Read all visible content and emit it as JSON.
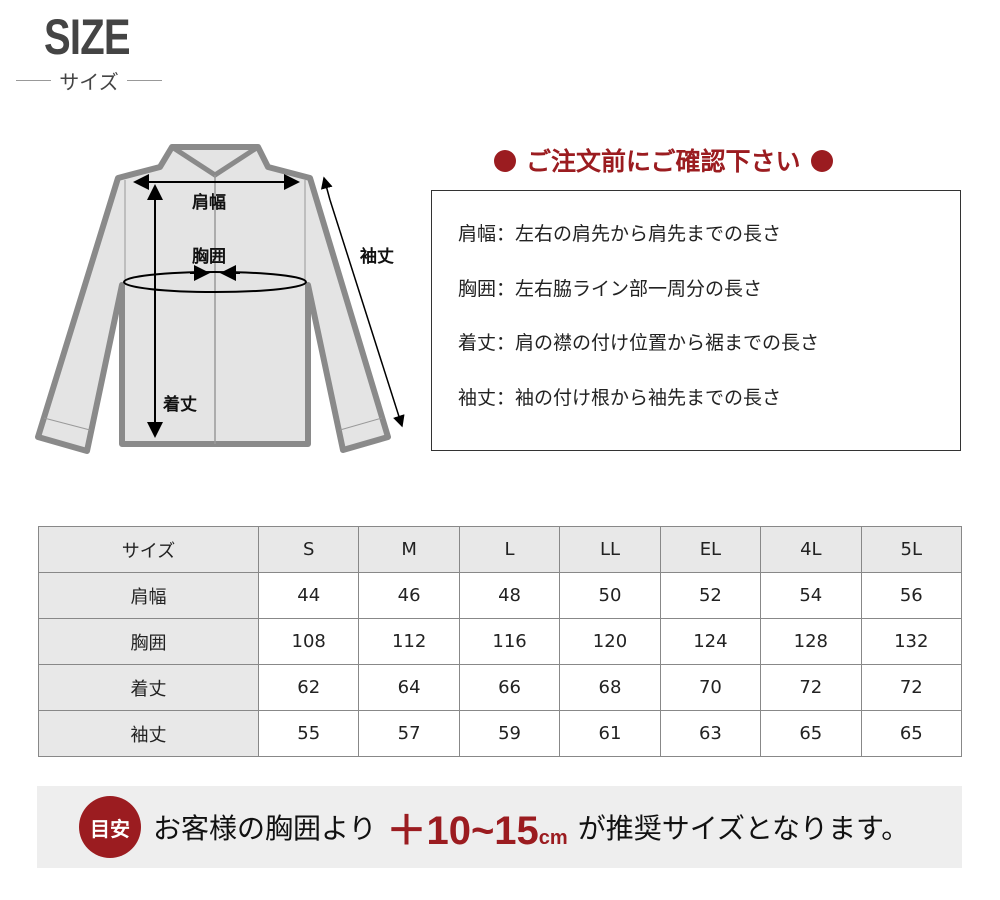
{
  "header": {
    "title": "SIZE",
    "subtitle": "サイズ"
  },
  "diagram": {
    "labels": {
      "shoulder": "肩幅",
      "chest": "胸囲",
      "length": "着丈",
      "sleeve": "袖丈"
    }
  },
  "notice": {
    "heading": "ご注文前にご確認下さい",
    "lines": [
      "肩幅：左右の肩先から肩先までの長さ",
      "胸囲：左右脇ライン部一周分の長さ",
      "着丈：肩の襟の付け位置から裾までの長さ",
      "袖丈：袖の付け根から袖先までの長さ"
    ]
  },
  "size_table": {
    "headers": [
      "サイズ",
      "S",
      "M",
      "L",
      "LL",
      "EL",
      "4L",
      "5L"
    ],
    "rows": [
      [
        "肩幅",
        "44",
        "46",
        "48",
        "50",
        "52",
        "54",
        "56"
      ],
      [
        "胸囲",
        "108",
        "112",
        "116",
        "120",
        "124",
        "128",
        "132"
      ],
      [
        "着丈",
        "62",
        "64",
        "66",
        "68",
        "70",
        "72",
        "72"
      ],
      [
        "袖丈",
        "55",
        "57",
        "59",
        "61",
        "63",
        "65",
        "65"
      ]
    ]
  },
  "banner": {
    "badge": "目安",
    "text_before": "お客様の胸囲より",
    "highlight": "＋10~15",
    "unit": "cm",
    "text_after": "が推奨サイズとなります。"
  },
  "colors": {
    "accent": "#9b1c20",
    "header_bg": "#e8e8e8",
    "banner_bg": "#eeeeee",
    "jacket_fill": "#e4e4e4",
    "jacket_stroke": "#8a8a8a"
  }
}
